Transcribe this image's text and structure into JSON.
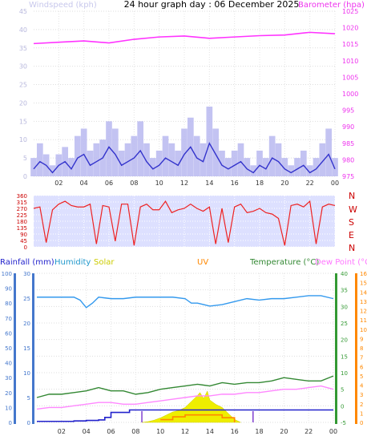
{
  "colors": {
    "wind": "#3333cc",
    "gust": "#b8b8f0",
    "baro": "#ff33ff",
    "dir": "#ee2222",
    "rain": "#2222cc",
    "humidity": "#3399ee",
    "solar": "#eeee00",
    "uv": "#ff8800",
    "temp": "#338833",
    "dew": "#ff88ff",
    "axis_blue": "#4477cc",
    "axis_green": "#339933",
    "axis_orange": "#ff8800"
  },
  "chart_data": [
    {
      "type": "line",
      "title": "24 hour graph day : 06 December 2025",
      "xlabel": "",
      "x_ticks": [
        "02",
        "04",
        "06",
        "08",
        "10",
        "12",
        "14",
        "16",
        "18",
        "20",
        "22",
        "00"
      ],
      "left_axis": {
        "label": "Windspeed (kph)",
        "ticks": [
          0,
          5,
          10,
          15,
          20,
          25,
          30,
          35,
          40,
          45
        ],
        "range": [
          0,
          45
        ]
      },
      "right_axis": {
        "label": "Barometer (hpa)",
        "ticks": [
          975,
          980,
          985,
          990,
          995,
          1000,
          1005,
          1010,
          1015,
          1020,
          1025
        ],
        "range": [
          975,
          1025
        ]
      },
      "x_range": [
        0,
        24
      ],
      "series": [
        {
          "name": "Windspeed",
          "axis": "left",
          "style": "line",
          "color_key": "wind",
          "x": [
            0,
            0.5,
            1,
            1.5,
            2,
            2.5,
            3,
            3.5,
            4,
            4.5,
            5,
            5.5,
            6,
            6.5,
            7,
            7.5,
            8,
            8.5,
            9,
            9.5,
            10,
            10.5,
            11,
            11.5,
            12,
            12.5,
            13,
            13.5,
            14,
            14.5,
            15,
            15.5,
            16,
            16.5,
            17,
            17.5,
            18,
            18.5,
            19,
            19.5,
            20,
            20.5,
            21,
            21.5,
            22,
            22.5,
            23,
            23.5,
            24
          ],
          "y": [
            2,
            4,
            3,
            1,
            3,
            4,
            2,
            5,
            6,
            3,
            4,
            5,
            8,
            6,
            3,
            4,
            5,
            7,
            4,
            2,
            3,
            5,
            4,
            3,
            6,
            8,
            5,
            4,
            9,
            6,
            3,
            2,
            3,
            4,
            2,
            1,
            3,
            2,
            5,
            4,
            2,
            1,
            2,
            3,
            1,
            2,
            4,
            6,
            2
          ]
        },
        {
          "name": "Gust",
          "axis": "left",
          "style": "bar",
          "color_key": "gust",
          "x": [
            0,
            0.5,
            1,
            1.5,
            2,
            2.5,
            3,
            3.5,
            4,
            4.5,
            5,
            5.5,
            6,
            6.5,
            7,
            7.5,
            8,
            8.5,
            9,
            9.5,
            10,
            10.5,
            11,
            11.5,
            12,
            12.5,
            13,
            13.5,
            14,
            14.5,
            15,
            15.5,
            16,
            16.5,
            17,
            17.5,
            18,
            18.5,
            19,
            19.5,
            20,
            20.5,
            21,
            21.5,
            22,
            22.5,
            23,
            23.5,
            24
          ],
          "y": [
            5,
            9,
            6,
            3,
            6,
            8,
            5,
            11,
            13,
            7,
            9,
            10,
            15,
            13,
            7,
            9,
            11,
            15,
            9,
            5,
            7,
            11,
            9,
            7,
            13,
            16,
            11,
            9,
            19,
            13,
            7,
            5,
            7,
            9,
            5,
            3,
            7,
            5,
            11,
            9,
            5,
            3,
            5,
            7,
            3,
            5,
            9,
            13,
            5
          ]
        },
        {
          "name": "Barometer",
          "axis": "right",
          "style": "line",
          "color_key": "baro",
          "x": [
            0,
            2,
            4,
            6,
            8,
            10,
            12,
            14,
            16,
            18,
            20,
            22,
            24
          ],
          "y": [
            1015.2,
            1015.6,
            1016.0,
            1015.4,
            1016.5,
            1017.2,
            1017.5,
            1016.8,
            1017.2,
            1017.6,
            1017.8,
            1018.6,
            1018.2
          ]
        }
      ]
    },
    {
      "type": "line",
      "title": "",
      "left_axis": {
        "ticks": [
          0,
          45,
          90,
          135,
          180,
          225,
          270,
          315,
          360
        ],
        "range": [
          0,
          360
        ]
      },
      "right_labels": [
        "N",
        "W",
        "S",
        "E",
        "N"
      ],
      "x_range": [
        0,
        24
      ],
      "series": [
        {
          "name": "Wind direction",
          "axis": "left",
          "style": "line",
          "color_key": "dir",
          "x": [
            0,
            0.5,
            1,
            1.5,
            2,
            2.5,
            3,
            3.5,
            4,
            4.5,
            5,
            5.5,
            6,
            6.5,
            7,
            7.5,
            8,
            8.5,
            9,
            9.5,
            10,
            10.5,
            11,
            11.5,
            12,
            12.5,
            13,
            13.5,
            14,
            14.5,
            15,
            15.5,
            16,
            16.5,
            17,
            17.5,
            18,
            18.5,
            19,
            19.5,
            20,
            20.5,
            21,
            21.5,
            22,
            22.5,
            23,
            23.5,
            24
          ],
          "y": [
            270,
            280,
            30,
            260,
            300,
            320,
            290,
            280,
            280,
            300,
            20,
            290,
            280,
            40,
            300,
            300,
            10,
            280,
            300,
            260,
            260,
            320,
            240,
            260,
            270,
            300,
            270,
            250,
            280,
            20,
            270,
            30,
            280,
            300,
            240,
            250,
            270,
            240,
            230,
            200,
            10,
            290,
            300,
            280,
            320,
            20,
            280,
            300,
            290
          ]
        }
      ]
    },
    {
      "type": "line",
      "title": "",
      "legend": [
        "Rainfall (mm)",
        "Humidity",
        "Solar",
        "UV",
        "Temperature (°C)",
        "Dew Point (°C)"
      ],
      "x_ticks": [
        "02",
        "04",
        "06",
        "08",
        "10",
        "12",
        "14",
        "16",
        "18",
        "20",
        "22",
        "00"
      ],
      "axes": {
        "humidity": {
          "ticks": [
            0,
            10,
            20,
            30,
            40,
            50,
            60,
            70,
            80,
            90,
            100
          ],
          "range": [
            0,
            100
          ]
        },
        "rain": {
          "ticks": [
            0,
            5,
            10,
            15,
            20,
            25,
            30
          ],
          "range": [
            0,
            30
          ]
        },
        "temp": {
          "ticks": [
            -5,
            0,
            5,
            10,
            15,
            20,
            25,
            30,
            35,
            40
          ],
          "range": [
            -5,
            40
          ]
        },
        "uv": {
          "ticks": [
            0,
            1,
            2,
            3,
            4,
            5,
            6,
            7,
            8,
            9,
            10,
            11,
            12,
            13,
            14,
            15,
            16
          ],
          "range": [
            0,
            16
          ]
        }
      },
      "x_range": [
        0,
        24
      ],
      "series": [
        {
          "name": "Humidity",
          "axis": "humidity",
          "style": "line",
          "color_key": "humidity",
          "x": [
            0,
            1,
            2,
            3,
            3.5,
            4,
            4.5,
            5,
            6,
            7,
            8,
            9,
            10,
            11,
            12,
            12.5,
            13,
            14,
            15,
            16,
            17,
            18,
            19,
            20,
            21,
            22,
            23,
            24
          ],
          "y": [
            84,
            84,
            84,
            84,
            82,
            77,
            80,
            84,
            83,
            83,
            84,
            84,
            84,
            84,
            83,
            80,
            80,
            78,
            79,
            81,
            83,
            82,
            83,
            83,
            84,
            85,
            85,
            83
          ]
        },
        {
          "name": "Temperature",
          "axis": "temp",
          "style": "line",
          "color_key": "temp",
          "x": [
            0,
            1,
            2,
            3,
            4,
            5,
            6,
            7,
            8,
            9,
            10,
            11,
            12,
            13,
            14,
            15,
            16,
            17,
            18,
            19,
            20,
            21,
            22,
            23,
            24
          ],
          "y": [
            2.5,
            3.5,
            3.5,
            4,
            4.5,
            5.5,
            4.5,
            4.5,
            3.5,
            4,
            5,
            5.5,
            6,
            6.5,
            6,
            7,
            6.5,
            7,
            7,
            7.5,
            8.5,
            8,
            7.5,
            7.5,
            9
          ]
        },
        {
          "name": "Dew Point",
          "axis": "temp",
          "style": "line",
          "color_key": "dew",
          "x": [
            0,
            1,
            2,
            3,
            4,
            5,
            6,
            7,
            8,
            9,
            10,
            11,
            12,
            13,
            14,
            15,
            16,
            17,
            18,
            19,
            20,
            21,
            22,
            23,
            24
          ],
          "y": [
            -1,
            -0.5,
            -0.5,
            0,
            0.5,
            1,
            1,
            0.5,
            0.5,
            1,
            1.5,
            2,
            2.5,
            3,
            3,
            3.5,
            3.5,
            4,
            4,
            4.5,
            5,
            5,
            5.5,
            6,
            5
          ]
        },
        {
          "name": "Rainfall",
          "axis": "rain",
          "style": "step",
          "color_key": "rain",
          "x": [
            0,
            3,
            4,
            5,
            5.5,
            6,
            7,
            7.5,
            8,
            9,
            12,
            16,
            20,
            24
          ],
          "y": [
            0.2,
            0.3,
            0.4,
            0.5,
            1,
            2,
            2,
            2.5,
            2.5,
            2.5,
            2.5,
            2.5,
            2.5,
            2.5
          ]
        },
        {
          "name": "Solar",
          "axis": "humidity",
          "style": "area",
          "color_key": "solar",
          "x": [
            8.5,
            9,
            9.5,
            10,
            10.5,
            11,
            11.5,
            12,
            12.5,
            13,
            13.2,
            13.5,
            13.8,
            14,
            14.5,
            15,
            15.5,
            16,
            16.5
          ],
          "y": [
            0,
            0.5,
            1.5,
            3,
            5,
            7,
            8,
            10,
            14,
            18,
            20,
            16,
            21,
            15,
            12,
            10,
            6,
            2,
            0
          ]
        },
        {
          "name": "UV",
          "axis": "uv",
          "style": "step",
          "color_key": "uv",
          "x": [
            10,
            11,
            12,
            14,
            15,
            16
          ],
          "y": [
            0.3,
            0.6,
            0.8,
            0.8,
            0.5,
            0
          ]
        }
      ]
    }
  ]
}
